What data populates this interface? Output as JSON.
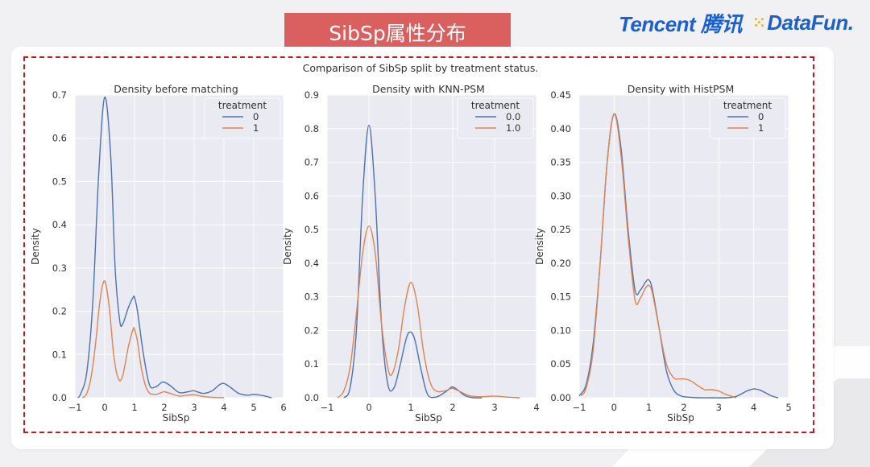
{
  "slide": {
    "title": "SibSp属性分布",
    "logo_tencent": "Tencent 腾讯",
    "logo_datafun": "DataFun."
  },
  "chart_data": {
    "suptitle": "Comparison of SibSp split by treatment status.",
    "colors": {
      "series_0": "#4c72b0",
      "series_1": "#dd8452",
      "plot_bg": "#eaeaf2",
      "grid": "#ffffff"
    },
    "charts": [
      {
        "type": "line",
        "title": "Density before matching",
        "xlabel": "SibSp",
        "ylabel": "Density",
        "xlim": [
          -1,
          6
        ],
        "ylim": [
          0,
          0.7
        ],
        "xticks": [
          -1,
          0,
          1,
          2,
          3,
          4,
          5,
          6
        ],
        "yticks": [
          0.0,
          0.1,
          0.2,
          0.3,
          0.4,
          0.5,
          0.6,
          0.7
        ],
        "ytick_labels": [
          "0.0",
          "0.1",
          "0.2",
          "0.3",
          "0.4",
          "0.5",
          "0.6",
          "0.7"
        ],
        "legend_title": "treatment",
        "legend_placement": "top-right",
        "series": [
          {
            "name": "0",
            "color": "#4c72b0",
            "x": [
              -0.9,
              -0.8,
              -0.6,
              -0.4,
              -0.2,
              0,
              0.2,
              0.35,
              0.5,
              0.6,
              0.8,
              0.95,
              1,
              1.1,
              1.3,
              1.5,
              1.7,
              1.9,
              2.0,
              2.2,
              2.5,
              2.8,
              3.0,
              3.3,
              3.6,
              3.85,
              4.0,
              4.2,
              4.5,
              4.8,
              5.0,
              5.3,
              5.6
            ],
            "y": [
              0.0,
              0.01,
              0.06,
              0.22,
              0.52,
              0.695,
              0.56,
              0.3,
              0.18,
              0.17,
              0.21,
              0.232,
              0.232,
              0.2,
              0.1,
              0.03,
              0.025,
              0.035,
              0.036,
              0.028,
              0.012,
              0.014,
              0.016,
              0.01,
              0.016,
              0.03,
              0.033,
              0.025,
              0.01,
              0.006,
              0.008,
              0.005,
              0.0
            ]
          },
          {
            "name": "1",
            "color": "#dd8452",
            "x": [
              -0.75,
              -0.6,
              -0.45,
              -0.3,
              -0.15,
              0,
              0.15,
              0.3,
              0.45,
              0.6,
              0.8,
              0.95,
              1,
              1.1,
              1.25,
              1.45,
              1.7,
              1.9,
              2.0,
              2.2,
              2.5,
              2.8,
              3.0,
              3.3,
              3.6,
              4.0
            ],
            "y": [
              0.0,
              0.01,
              0.05,
              0.13,
              0.23,
              0.27,
              0.21,
              0.1,
              0.045,
              0.05,
              0.12,
              0.158,
              0.158,
              0.13,
              0.06,
              0.015,
              0.008,
              0.012,
              0.014,
              0.01,
              0.004,
              0.006,
              0.007,
              0.003,
              0.001,
              0.0
            ]
          }
        ]
      },
      {
        "type": "line",
        "title": "Density with KNN-PSM",
        "xlabel": "SibSp",
        "ylabel": "Density",
        "xlim": [
          -1,
          4
        ],
        "ylim": [
          0,
          0.9
        ],
        "xticks": [
          -1,
          0,
          1,
          2,
          3,
          4
        ],
        "yticks": [
          0.0,
          0.1,
          0.2,
          0.3,
          0.4,
          0.5,
          0.6,
          0.7,
          0.8,
          0.9
        ],
        "ytick_labels": [
          "0.0",
          "0.1",
          "0.2",
          "0.3",
          "0.4",
          "0.5",
          "0.6",
          "0.7",
          "0.8",
          "0.9"
        ],
        "legend_title": "treatment",
        "legend_placement": "top-right",
        "series": [
          {
            "name": "0.0",
            "color": "#4c72b0",
            "x": [
              -0.6,
              -0.45,
              -0.3,
              -0.15,
              0,
              0.15,
              0.3,
              0.45,
              0.6,
              0.75,
              0.9,
              1,
              1.1,
              1.25,
              1.4,
              1.6,
              1.8,
              1.95,
              2.0,
              2.1,
              2.3,
              2.5,
              2.7
            ],
            "y": [
              0.0,
              0.03,
              0.2,
              0.6,
              0.81,
              0.6,
              0.22,
              0.04,
              0.03,
              0.1,
              0.18,
              0.195,
              0.17,
              0.08,
              0.01,
              0.002,
              0.015,
              0.03,
              0.032,
              0.025,
              0.006,
              0.0,
              0.0
            ]
          },
          {
            "name": "1.0",
            "color": "#dd8452",
            "x": [
              -0.75,
              -0.6,
              -0.45,
              -0.3,
              -0.15,
              0,
              0.15,
              0.3,
              0.45,
              0.55,
              0.7,
              0.85,
              1,
              1.15,
              1.3,
              1.45,
              1.6,
              1.8,
              1.95,
              2.0,
              2.15,
              2.4,
              2.7,
              3.0,
              3.3,
              3.6
            ],
            "y": [
              0.0,
              0.02,
              0.09,
              0.25,
              0.43,
              0.51,
              0.43,
              0.22,
              0.09,
              0.07,
              0.14,
              0.27,
              0.343,
              0.28,
              0.14,
              0.05,
              0.02,
              0.02,
              0.027,
              0.028,
              0.02,
              0.006,
              0.003,
              0.005,
              0.002,
              0.0
            ]
          }
        ]
      },
      {
        "type": "line",
        "title": "Density with HistPSM",
        "xlabel": "SibSp",
        "ylabel": "Density",
        "xlim": [
          -1,
          5
        ],
        "ylim": [
          0,
          0.45
        ],
        "xticks": [
          -1,
          0,
          1,
          2,
          3,
          4,
          5
        ],
        "yticks": [
          0.0,
          0.05,
          0.1,
          0.15,
          0.2,
          0.25,
          0.3,
          0.35,
          0.4,
          0.45
        ],
        "ytick_labels": [
          "0.00",
          "0.05",
          "0.10",
          "0.15",
          "0.20",
          "0.25",
          "0.30",
          "0.35",
          "0.40",
          "0.45"
        ],
        "legend_title": "treatment",
        "legend_placement": "top-right",
        "series": [
          {
            "name": "0",
            "color": "#4c72b0",
            "x": [
              -1.0,
              -0.8,
              -0.6,
              -0.4,
              -0.2,
              0,
              0.2,
              0.4,
              0.6,
              0.75,
              0.9,
              1.0,
              1.1,
              1.3,
              1.5,
              1.7,
              1.9,
              2.1,
              2.4,
              2.8,
              3.2,
              3.5,
              3.8,
              4.0,
              4.2,
              4.5,
              4.7
            ],
            "y": [
              0.003,
              0.02,
              0.08,
              0.2,
              0.35,
              0.422,
              0.37,
              0.25,
              0.16,
              0.16,
              0.172,
              0.175,
              0.16,
              0.1,
              0.04,
              0.012,
              0.003,
              0.001,
              0.0,
              0.0,
              0.0,
              0.002,
              0.01,
              0.013,
              0.011,
              0.003,
              0.0
            ]
          },
          {
            "name": "1",
            "color": "#dd8452",
            "x": [
              -0.95,
              -0.8,
              -0.6,
              -0.4,
              -0.2,
              0,
              0.2,
              0.4,
              0.6,
              0.75,
              0.9,
              1.0,
              1.1,
              1.3,
              1.5,
              1.7,
              1.85,
              2.0,
              2.2,
              2.4,
              2.6,
              2.8,
              3.0,
              3.2,
              3.5
            ],
            "y": [
              0.003,
              0.015,
              0.07,
              0.2,
              0.35,
              0.422,
              0.36,
              0.24,
              0.145,
              0.148,
              0.163,
              0.167,
              0.155,
              0.1,
              0.05,
              0.03,
              0.028,
              0.028,
              0.025,
              0.018,
              0.012,
              0.012,
              0.01,
              0.005,
              0.0
            ]
          }
        ]
      }
    ]
  }
}
